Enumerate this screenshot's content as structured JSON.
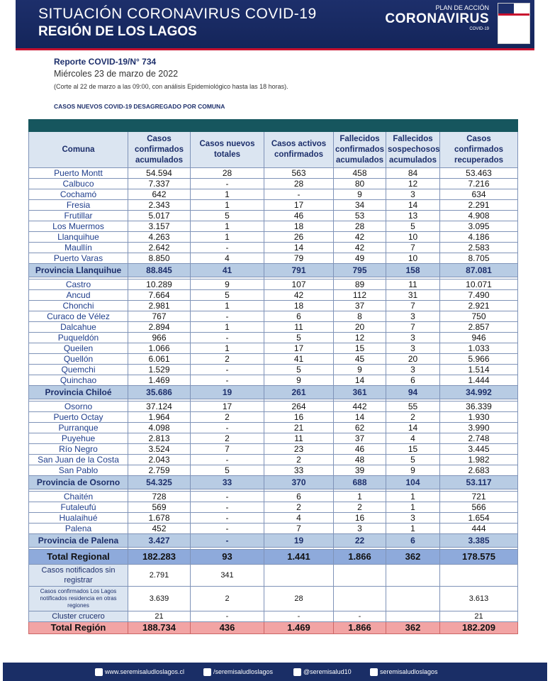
{
  "header": {
    "title": "SITUACIÓN CORONAVIRUS COVID-19",
    "subtitle": "REGIÓN DE LOS LAGOS",
    "logo_top": "PLAN DE ACCIÓN",
    "logo_main": "CORONAVIRUS",
    "logo_sub": "COVID-19"
  },
  "report": {
    "number": "Reporte COVID-19/N° 734",
    "date": "Miércoles 23 de marzo de 2022",
    "note": "(Corte al 22 de marzo a las 09:00, con análisis Epidemiológico hasta las 18 horas)."
  },
  "section_title": "CASOS NUEVOS COVID-19 DESAGREGADO POR COMUNA",
  "table": {
    "columns": [
      "Comuna",
      "Casos confirmados acumulados",
      "Casos nuevos totales",
      "Casos activos confirmados",
      "Fallecidos confirmados acumulados",
      "Fallecidos sospechosos acumulados",
      "Casos confirmados recuperados"
    ],
    "sections": [
      {
        "rows": [
          [
            "Puerto Montt",
            "54.594",
            "28",
            "563",
            "458",
            "84",
            "53.463"
          ],
          [
            "Calbuco",
            "7.337",
            "-",
            "28",
            "80",
            "12",
            "7.216"
          ],
          [
            "Cochamó",
            "642",
            "1",
            "-",
            "9",
            "3",
            "634"
          ],
          [
            "Fresia",
            "2.343",
            "1",
            "17",
            "34",
            "14",
            "2.291"
          ],
          [
            "Frutillar",
            "5.017",
            "5",
            "46",
            "53",
            "13",
            "4.908"
          ],
          [
            "Los Muermos",
            "3.157",
            "1",
            "18",
            "28",
            "5",
            "3.095"
          ],
          [
            "Llanquihue",
            "4.263",
            "1",
            "26",
            "42",
            "10",
            "4.186"
          ],
          [
            "Maullín",
            "2.642",
            "-",
            "14",
            "42",
            "7",
            "2.583"
          ],
          [
            "Puerto Varas",
            "8.850",
            "4",
            "79",
            "49",
            "10",
            "8.705"
          ]
        ],
        "total": [
          "Provincia Llanquihue",
          "88.845",
          "41",
          "791",
          "795",
          "158",
          "87.081"
        ]
      },
      {
        "rows": [
          [
            "Castro",
            "10.289",
            "9",
            "107",
            "89",
            "11",
            "10.071"
          ],
          [
            "Ancud",
            "7.664",
            "5",
            "42",
            "112",
            "31",
            "7.490"
          ],
          [
            "Chonchi",
            "2.981",
            "1",
            "18",
            "37",
            "7",
            "2.921"
          ],
          [
            "Curaco de Vélez",
            "767",
            "-",
            "6",
            "8",
            "3",
            "750"
          ],
          [
            "Dalcahue",
            "2.894",
            "1",
            "11",
            "20",
            "7",
            "2.857"
          ],
          [
            "Puqueldón",
            "966",
            "-",
            "5",
            "12",
            "3",
            "946"
          ],
          [
            "Queilen",
            "1.066",
            "1",
            "17",
            "15",
            "3",
            "1.033"
          ],
          [
            "Quellón",
            "6.061",
            "2",
            "41",
            "45",
            "20",
            "5.966"
          ],
          [
            "Quemchi",
            "1.529",
            "-",
            "5",
            "9",
            "3",
            "1.514"
          ],
          [
            "Quinchao",
            "1.469",
            "-",
            "9",
            "14",
            "6",
            "1.444"
          ]
        ],
        "total": [
          "Provincia Chiloé",
          "35.686",
          "19",
          "261",
          "361",
          "94",
          "34.992"
        ]
      },
      {
        "rows": [
          [
            "Osorno",
            "37.124",
            "17",
            "264",
            "442",
            "55",
            "36.339"
          ],
          [
            "Puerto Octay",
            "1.964",
            "2",
            "16",
            "14",
            "2",
            "1.930"
          ],
          [
            "Purranque",
            "4.098",
            "-",
            "21",
            "62",
            "14",
            "3.990"
          ],
          [
            "Puyehue",
            "2.813",
            "2",
            "11",
            "37",
            "4",
            "2.748"
          ],
          [
            "Río Negro",
            "3.524",
            "7",
            "23",
            "46",
            "15",
            "3.445"
          ],
          [
            "San Juan de la Costa",
            "2.043",
            "-",
            "2",
            "48",
            "5",
            "1.982"
          ],
          [
            "San Pablo",
            "2.759",
            "5",
            "33",
            "39",
            "9",
            "2.683"
          ]
        ],
        "total": [
          "Provincia de Osorno",
          "54.325",
          "33",
          "370",
          "688",
          "104",
          "53.117"
        ]
      },
      {
        "rows": [
          [
            "Chaitén",
            "728",
            "-",
            "6",
            "1",
            "1",
            "721"
          ],
          [
            "Futaleufú",
            "569",
            "-",
            "2",
            "2",
            "1",
            "566"
          ],
          [
            "Hualaihué",
            "1.678",
            "-",
            "4",
            "16",
            "3",
            "1.654"
          ],
          [
            "Palena",
            "452",
            "-",
            "7",
            "3",
            "1",
            "444"
          ]
        ],
        "total": [
          "Provincia de Palena",
          "3.427",
          "-",
          "19",
          "22",
          "6",
          "3.385"
        ]
      }
    ],
    "total_regional": [
      "Total Regional",
      "182.283",
      "93",
      "1.441",
      "1.866",
      "362",
      "178.575"
    ],
    "extra_rows": [
      [
        "Casos notificados sin registrar",
        "2.791",
        "341",
        null,
        null,
        null,
        null
      ],
      [
        "Casos confirmados Los Lagos notificados residencia en otras regiones",
        "3.639",
        "2",
        "28",
        null,
        null,
        "3.613"
      ],
      [
        "Cluster crucero",
        "21",
        "-",
        "-",
        "-",
        null,
        "21"
      ]
    ],
    "total_region": [
      "Total Región",
      "188.734",
      "436",
      "1.469",
      "1.866",
      "362",
      "182.209"
    ]
  },
  "footer": [
    "www.seremisaludloslagos.cl",
    "/seremisaludloslagos",
    "@seremisalud10",
    "seremisaludloslagos"
  ]
}
